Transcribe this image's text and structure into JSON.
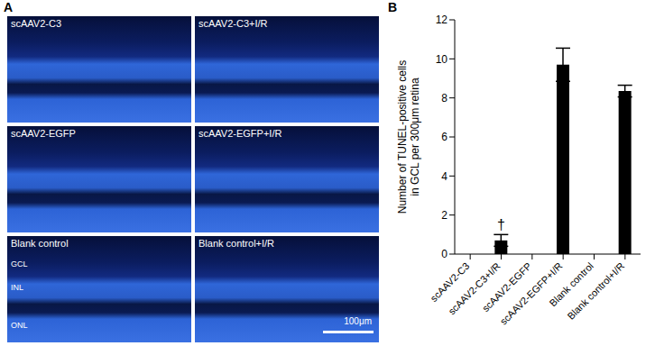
{
  "panel_labels": [
    "A",
    "B"
  ],
  "micrographs": {
    "panels": [
      "scAAV2-C3",
      "scAAV2-C3+I/R",
      "scAAV2-EGFP",
      "scAAV2-EGFP+I/R",
      "Blank control",
      "Blank control+I/R"
    ],
    "layers": [
      "GCL",
      "INL",
      "ONL"
    ],
    "scale_bar": "100μm"
  },
  "chart_data": {
    "type": "bar",
    "ylabel": [
      "Number of TUNEL-positive cells",
      "in GCL per 300μm retina"
    ],
    "categories": [
      "scAAV2-C3",
      "scAAV2-C3+I/R",
      "scAAV2-EGFP",
      "scAAV2-EGFP+I/R",
      "Blank control",
      "Blank control+I/R"
    ],
    "values": [
      0,
      0.7,
      0,
      9.7,
      0,
      8.35
    ],
    "errors": [
      0,
      0.3,
      0,
      0.85,
      0,
      0.3
    ],
    "color": "#000000",
    "ylim": [
      0,
      12
    ],
    "yticks": [
      0,
      2,
      4,
      6,
      8,
      10,
      12
    ],
    "annotations": [
      {
        "category": "scAAV2-C3+I/R",
        "text": "†"
      }
    ]
  }
}
